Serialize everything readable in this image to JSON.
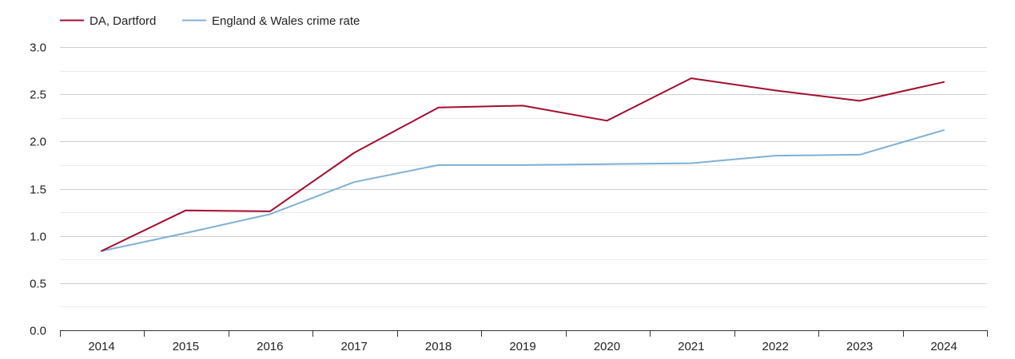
{
  "chart_data": {
    "type": "line",
    "title": "",
    "xlabel": "",
    "ylabel": "",
    "categories": [
      "2014",
      "2015",
      "2016",
      "2017",
      "2018",
      "2019",
      "2020",
      "2021",
      "2022",
      "2023",
      "2024"
    ],
    "ylim": [
      0,
      3
    ],
    "y_ticks": [
      "0.0",
      "0.5",
      "1.0",
      "1.5",
      "2.0",
      "2.5",
      "3.0"
    ],
    "grid": true,
    "legend_position": "top-left",
    "series": [
      {
        "name": "DA, Dartford",
        "color": "#a30d2e",
        "values": [
          0.84,
          1.27,
          1.26,
          1.88,
          2.36,
          2.38,
          2.22,
          2.67,
          2.54,
          2.43,
          2.63
        ]
      },
      {
        "name": "England & Wales crime rate",
        "color": "#7eb0d5",
        "values": [
          0.84,
          1.03,
          1.23,
          1.57,
          1.75,
          1.75,
          1.76,
          1.77,
          1.85,
          1.86,
          2.12
        ]
      }
    ]
  }
}
